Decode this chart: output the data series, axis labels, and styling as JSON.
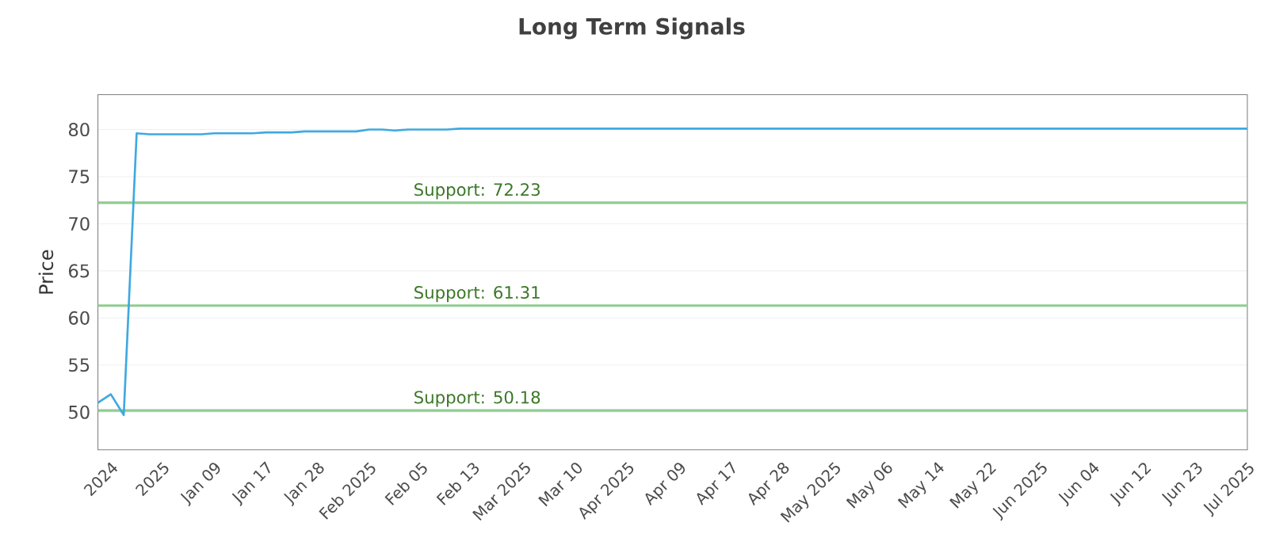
{
  "chart_data": {
    "type": "line",
    "title": "Long Term Signals",
    "ylabel": "Price",
    "categories": [
      null,
      "2024",
      null,
      null,
      null,
      "2025",
      null,
      null,
      null,
      "Jan 09",
      null,
      null,
      null,
      "Jan 17",
      null,
      null,
      null,
      "Jan 28",
      null,
      null,
      null,
      "Feb 2025",
      null,
      null,
      null,
      "Feb 05",
      null,
      null,
      null,
      "Feb 13",
      null,
      null,
      null,
      "Mar 2025",
      null,
      null,
      null,
      "Mar 10",
      null,
      null,
      null,
      "Apr 2025",
      null,
      null,
      null,
      "Apr 09",
      null,
      null,
      null,
      "Apr 17",
      null,
      null,
      null,
      "Apr 28",
      null,
      null,
      null,
      "May 2025",
      null,
      null,
      null,
      "May 06",
      null,
      null,
      null,
      "May 14",
      null,
      null,
      null,
      "May 22",
      null,
      null,
      null,
      "Jun 2025",
      null,
      null,
      null,
      "Jun 04",
      null,
      null,
      null,
      "Jun 12",
      null,
      null,
      null,
      "Jun 23",
      null,
      null,
      null,
      "Jul 2025"
    ],
    "series": [
      {
        "color": "#3fa9e0",
        "values": [
          51.0,
          51.9,
          49.7,
          79.6,
          79.5,
          79.5,
          79.5,
          79.5,
          79.5,
          79.6,
          79.6,
          79.6,
          79.6,
          79.7,
          79.7,
          79.7,
          79.8,
          79.8,
          79.8,
          79.8,
          79.8,
          80.0,
          80.0,
          79.9,
          80.0,
          80.0,
          80.0,
          80.0,
          80.1,
          80.1,
          80.1,
          80.1,
          80.1,
          80.1,
          80.1,
          80.1,
          80.1,
          80.1,
          80.1,
          80.1,
          80.1,
          80.1,
          80.1,
          80.1,
          80.1,
          80.1,
          80.1,
          80.1,
          80.1,
          80.1,
          80.1,
          80.1,
          80.1,
          80.1,
          80.1,
          80.1,
          80.1,
          80.1,
          80.1,
          80.1,
          80.1,
          80.1,
          80.1,
          80.1,
          80.1,
          80.1,
          80.1,
          80.1,
          80.1,
          80.1,
          80.1,
          80.1,
          80.1,
          80.1,
          80.1,
          80.1,
          80.1,
          80.1,
          80.1,
          80.1,
          80.1,
          80.1,
          80.1,
          80.1,
          80.1,
          80.1,
          80.1,
          80.1,
          80.1,
          80.1
        ]
      }
    ],
    "ylim": [
      46,
      83.7
    ],
    "yticks": [
      50,
      55,
      60,
      65,
      70,
      75,
      80
    ],
    "grid": "y",
    "marker": "none",
    "line_style": "solid",
    "ref_lines": [
      {
        "axis": "y",
        "value": 72.23,
        "label": "Support: 72.23",
        "color": "#8fcc8f"
      },
      {
        "axis": "y",
        "value": 61.31,
        "label": "Support: 61.31",
        "color": "#8fcc8f"
      },
      {
        "axis": "y",
        "value": 50.18,
        "label": "Support: 50.18",
        "color": "#8fcc8f"
      }
    ]
  }
}
